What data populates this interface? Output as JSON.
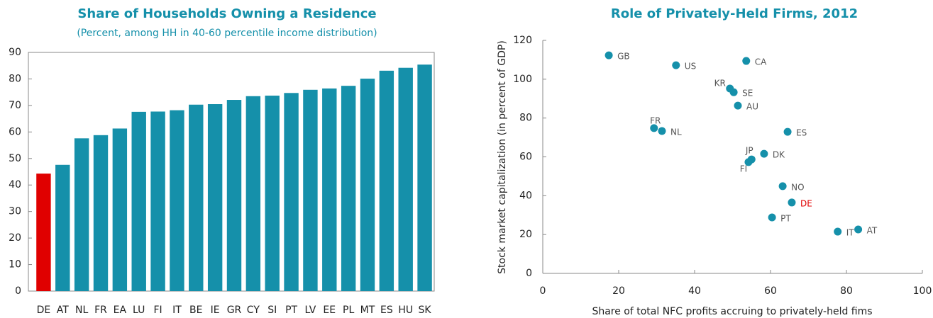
{
  "chart_data": [
    {
      "type": "bar",
      "title": "Share of Households Owning a Residence",
      "subtitle": "(Percent, among HH in 40-60 percentile income distribution)",
      "categories": [
        "DE",
        "AT",
        "NL",
        "FR",
        "EA",
        "LU",
        "FI",
        "IT",
        "BE",
        "IE",
        "GR",
        "CY",
        "SI",
        "PT",
        "LV",
        "EE",
        "PL",
        "MT",
        "ES",
        "HU",
        "SK"
      ],
      "values": [
        44.3,
        47.6,
        57.6,
        58.8,
        61.3,
        67.6,
        67.7,
        68.2,
        70.3,
        70.5,
        72.1,
        73.5,
        73.7,
        74.7,
        75.9,
        76.4,
        77.4,
        80.1,
        83.1,
        84.2,
        85.4
      ],
      "colors": [
        "#e00000",
        "#1590aa",
        "#1590aa",
        "#1590aa",
        "#1590aa",
        "#1590aa",
        "#1590aa",
        "#1590aa",
        "#1590aa",
        "#1590aa",
        "#1590aa",
        "#1590aa",
        "#1590aa",
        "#1590aa",
        "#1590aa",
        "#1590aa",
        "#1590aa",
        "#1590aa",
        "#1590aa",
        "#1590aa",
        "#1590aa"
      ],
      "ylim": [
        0,
        90
      ],
      "yticks": [
        0,
        10,
        20,
        30,
        40,
        50,
        60,
        70,
        80,
        90
      ]
    },
    {
      "type": "scatter",
      "title": "Role of Privately-Held Firms, 2012",
      "xlabel": "Share of total NFC profits accruing to privately-held fims",
      "ylabel": "Stock market capitalization (in percent of GDP)",
      "labels": [
        "GB",
        "US",
        "CA",
        "KR",
        "SE",
        "AU",
        "FR",
        "NL",
        "ES",
        "DK",
        "JP",
        "FI",
        "NO",
        "DE",
        "PT",
        "IT",
        "AT"
      ],
      "x": [
        17.4,
        35.1,
        53.6,
        49.3,
        50.3,
        51.4,
        29.3,
        31.4,
        64.5,
        58.3,
        55.0,
        54.2,
        63.2,
        65.6,
        60.4,
        77.7,
        83.1
      ],
      "values": [
        112.3,
        107.2,
        109.4,
        95.2,
        93.3,
        86.4,
        74.8,
        73.3,
        72.9,
        61.6,
        58.7,
        57.3,
        44.9,
        36.5,
        28.8,
        21.5,
        22.6
      ],
      "color": "#1590aa",
      "label_colors": [
        "#555555",
        "#555555",
        "#555555",
        "#555555",
        "#555555",
        "#555555",
        "#555555",
        "#555555",
        "#555555",
        "#555555",
        "#555555",
        "#555555",
        "#555555",
        "#e00000",
        "#555555",
        "#555555",
        "#555555"
      ],
      "xlim": [
        0,
        100
      ],
      "xticks": [
        0,
        20,
        40,
        60,
        80,
        100
      ],
      "ylim": [
        0,
        120
      ],
      "yticks": [
        0,
        20,
        40,
        60,
        80,
        100,
        120
      ]
    }
  ]
}
